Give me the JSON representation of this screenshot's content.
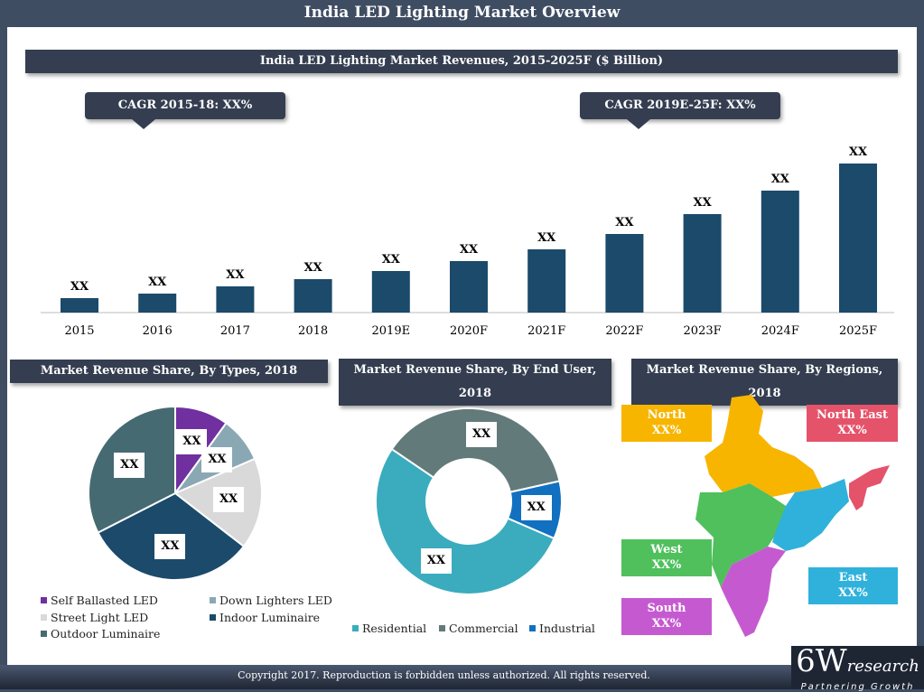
{
  "title": "India LED Lighting Market Overview",
  "bar_section": {
    "title": "India LED Lighting Market Revenues, 2015-2025F ($ Billion)",
    "cagr_left": "CAGR 2015-18: XX%",
    "cagr_right": "CAGR 2019E-25F: XX%"
  },
  "chart_data": [
    {
      "type": "bar",
      "title": "India LED Lighting Market Revenues, 2015-2025F ($ Billion)",
      "categories": [
        "2015",
        "2016",
        "2017",
        "2018",
        "2019E",
        "2020F",
        "2021F",
        "2022F",
        "2023F",
        "2024F",
        "2025F"
      ],
      "values": [
        16,
        21,
        29,
        37,
        46,
        57,
        70,
        87,
        109,
        135,
        165
      ],
      "data_labels": [
        "XX",
        "XX",
        "XX",
        "XX",
        "XX",
        "XX",
        "XX",
        "XX",
        "XX",
        "XX",
        "XX"
      ],
      "color": "#1b4a6b",
      "grid": false
    },
    {
      "type": "pie",
      "title": "Market Revenue Share, By Types, 2018",
      "labels": [
        "Self Ballasted LED",
        "Down Lighters LED",
        "Street Light LED",
        "Indoor Luminaire",
        "Outdoor Luminaire"
      ],
      "values": [
        10,
        8.5,
        17,
        32,
        32.5
      ],
      "data_labels": [
        "XX",
        "XX",
        "XX",
        "XX",
        "XX"
      ],
      "colors": [
        "#7030a0",
        "#8aa8b4",
        "#d9d9d9",
        "#1b4a6b",
        "#466a72"
      ],
      "legend": "bottom"
    },
    {
      "type": "pie",
      "donut": true,
      "title": "Market Revenue Share, By End User, 2018",
      "labels": [
        "Residential",
        "Commercial",
        "Industrial"
      ],
      "values": [
        53,
        37,
        10
      ],
      "data_labels": [
        "XX",
        "XX",
        "XX"
      ],
      "colors": [
        "#3aacbd",
        "#637a7a",
        "#1270c0"
      ],
      "legend": "bottom"
    }
  ],
  "regions": {
    "title": "Market Revenue Share, By Regions, 2018",
    "items": [
      {
        "name": "North",
        "value": "XX%",
        "color": "#f7b500"
      },
      {
        "name": "North East",
        "value": "XX%",
        "color": "#e4536a"
      },
      {
        "name": "West",
        "value": "XX%",
        "color": "#4fc05c"
      },
      {
        "name": "East",
        "value": "XX%",
        "color": "#2fb1dc"
      },
      {
        "name": "South",
        "value": "XX%",
        "color": "#c55ad0"
      }
    ]
  },
  "footer": {
    "copyright": "Copyright 2017. Reproduction is forbidden unless authorized. All rights reserved."
  },
  "logo": {
    "main": "6W",
    "sub": "research",
    "tagline": "Partnering Growth"
  }
}
